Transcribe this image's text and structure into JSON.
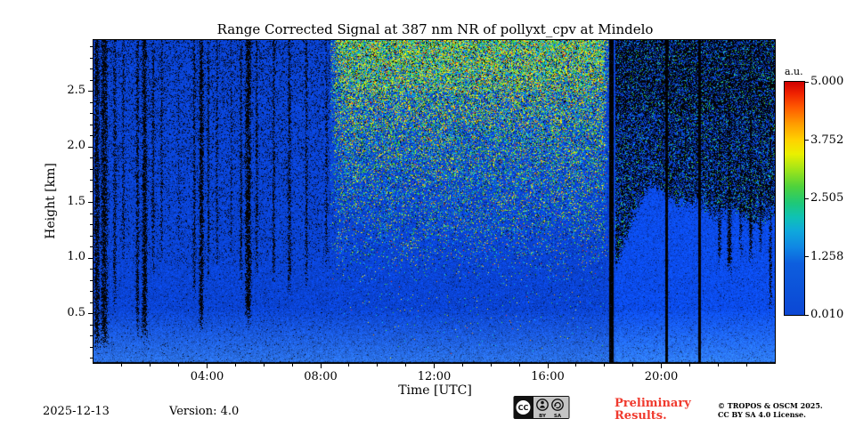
{
  "chart_data": {
    "type": "heatmap",
    "title": "Range Corrected Signal at 387 nm NR of pollyxt_cpv at Mindelo",
    "xlabel": "Time [UTC]",
    "ylabel": "Height [km]",
    "x_range_hours": [
      0,
      24
    ],
    "x_ticks": [
      {
        "hour": 4,
        "label": "04:00"
      },
      {
        "hour": 8,
        "label": "08:00"
      },
      {
        "hour": 12,
        "label": "12:00"
      },
      {
        "hour": 16,
        "label": "16:00"
      },
      {
        "hour": 20,
        "label": "20:00"
      }
    ],
    "y_range_km": [
      0.06,
      2.96
    ],
    "y_ticks": [
      {
        "km": 0.5,
        "label": "0.5"
      },
      {
        "km": 1.0,
        "label": "1.0"
      },
      {
        "km": 1.5,
        "label": "1.5"
      },
      {
        "km": 2.0,
        "label": "2.0"
      },
      {
        "km": 2.5,
        "label": "2.5"
      }
    ],
    "colorbar": {
      "label": "a.u.",
      "vmin": 0.01,
      "vmax": 5.0,
      "ticks": [
        "5.000",
        "3.752",
        "2.505",
        "1.258",
        "0.010"
      ],
      "gradient": [
        [
          0,
          "#cf0000"
        ],
        [
          0.05,
          "#ef2200"
        ],
        [
          0.11,
          "#ff5a00"
        ],
        [
          0.18,
          "#ff9c00"
        ],
        [
          0.25,
          "#ffd200"
        ],
        [
          0.31,
          "#eaf000"
        ],
        [
          0.38,
          "#9ce41a"
        ],
        [
          0.45,
          "#4ed23c"
        ],
        [
          0.52,
          "#1ec878"
        ],
        [
          0.58,
          "#0fc2b4"
        ],
        [
          0.64,
          "#0fa8dc"
        ],
        [
          0.71,
          "#0f86e4"
        ],
        [
          0.78,
          "#0d5ede"
        ],
        [
          1,
          "#0c47d4"
        ]
      ]
    },
    "description": "Lidar range-corrected signal quicklook: low background (blue) signal over 24 h; dark vertical cloud-attenuation streaks 00:00-08:00; dense colored daytime background noise speckle above ~1 km from ~08:30-18:10; full-height black data gaps near 18:15, 20:12 and 21:21; elevated aerosol layer up to ~1.7 km after 19:00 with dark noisy region above; black incomplete-overlap band at the lowest bins.",
    "features": {
      "base_color": "#0a44d6",
      "surface_black_top_km": 0.07,
      "daytime_noise_window": [
        8.35,
        18.18
      ],
      "blackout_bars": [
        {
          "t": 18.25,
          "w": 0.16
        },
        {
          "t": 20.2,
          "w": 0.1
        },
        {
          "t": 21.35,
          "w": 0.08
        }
      ],
      "night_cloud_streaks": [
        {
          "t": 0.12,
          "w": 0.22,
          "d": 0.85,
          "hbot": 0.12
        },
        {
          "t": 0.38,
          "w": 0.3,
          "d": 0.8,
          "hbot": 0.15
        },
        {
          "t": 0.75,
          "w": 0.15,
          "d": 0.6,
          "hbot": 0.5
        },
        {
          "t": 1.05,
          "w": 0.1,
          "d": 0.5,
          "hbot": 0.9
        },
        {
          "t": 1.55,
          "w": 0.14,
          "d": 0.7,
          "hbot": 0.25
        },
        {
          "t": 1.8,
          "w": 0.22,
          "d": 0.85,
          "hbot": 0.2
        },
        {
          "t": 2.1,
          "w": 0.12,
          "d": 0.6,
          "hbot": 0.8
        },
        {
          "t": 2.4,
          "w": 0.1,
          "d": 0.55,
          "hbot": 0.9
        },
        {
          "t": 3.0,
          "w": 0.08,
          "d": 0.4,
          "hbot": 1.0
        },
        {
          "t": 3.55,
          "w": 0.12,
          "d": 0.6,
          "hbot": 0.6
        },
        {
          "t": 3.8,
          "w": 0.2,
          "d": 0.85,
          "hbot": 0.3
        },
        {
          "t": 4.05,
          "w": 0.1,
          "d": 0.6,
          "hbot": 0.8
        },
        {
          "t": 4.35,
          "w": 0.1,
          "d": 0.55,
          "hbot": 0.9
        },
        {
          "t": 4.85,
          "w": 0.08,
          "d": 0.45,
          "hbot": 1.0
        },
        {
          "t": 5.2,
          "w": 0.12,
          "d": 0.65,
          "hbot": 0.7
        },
        {
          "t": 5.45,
          "w": 0.26,
          "d": 0.85,
          "hbot": 0.35
        },
        {
          "t": 5.75,
          "w": 0.12,
          "d": 0.6,
          "hbot": 0.8
        },
        {
          "t": 6.35,
          "w": 0.12,
          "d": 0.6,
          "hbot": 0.75
        },
        {
          "t": 6.9,
          "w": 0.14,
          "d": 0.65,
          "hbot": 0.6
        },
        {
          "t": 7.5,
          "w": 0.12,
          "d": 0.6,
          "hbot": 0.7
        },
        {
          "t": 8.2,
          "w": 0.1,
          "d": 0.5,
          "hbot": 0.9
        }
      ],
      "evening_streaks": [
        {
          "t": 20.85,
          "w": 0.1,
          "d": 0.7,
          "hbot": 1.45
        },
        {
          "t": 22.05,
          "w": 0.14,
          "d": 0.8,
          "hbot": 0.9
        },
        {
          "t": 22.4,
          "w": 0.18,
          "d": 0.85,
          "hbot": 0.8
        },
        {
          "t": 22.8,
          "w": 0.12,
          "d": 0.7,
          "hbot": 1.0
        },
        {
          "t": 23.15,
          "w": 0.16,
          "d": 0.8,
          "hbot": 0.9
        },
        {
          "t": 23.5,
          "w": 0.12,
          "d": 0.75,
          "hbot": 1.0
        },
        {
          "t": 23.85,
          "w": 0.12,
          "d": 0.7,
          "hbot": 0.5
        }
      ],
      "evening_boundary": [
        [
          18.45,
          0.95
        ],
        [
          19.0,
          1.35
        ],
        [
          19.6,
          1.68
        ],
        [
          20.1,
          1.6
        ],
        [
          20.6,
          1.5
        ],
        [
          21.3,
          1.5
        ],
        [
          21.9,
          1.38
        ],
        [
          22.6,
          1.45
        ],
        [
          23.3,
          1.3
        ],
        [
          24.0,
          1.42
        ]
      ]
    }
  },
  "footer": {
    "date": "2025-12-13",
    "version": "Version: 4.0",
    "preliminary_line1": "Preliminary",
    "preliminary_line2": "Results.",
    "preliminary_color": "#f03a2e",
    "copyright_line1": "© TROPOS & OSCM 2025.",
    "copyright_line2": "CC BY SA 4.0 License.",
    "badge": {
      "cc": "CC",
      "by": "BY",
      "sa": "SA"
    }
  }
}
